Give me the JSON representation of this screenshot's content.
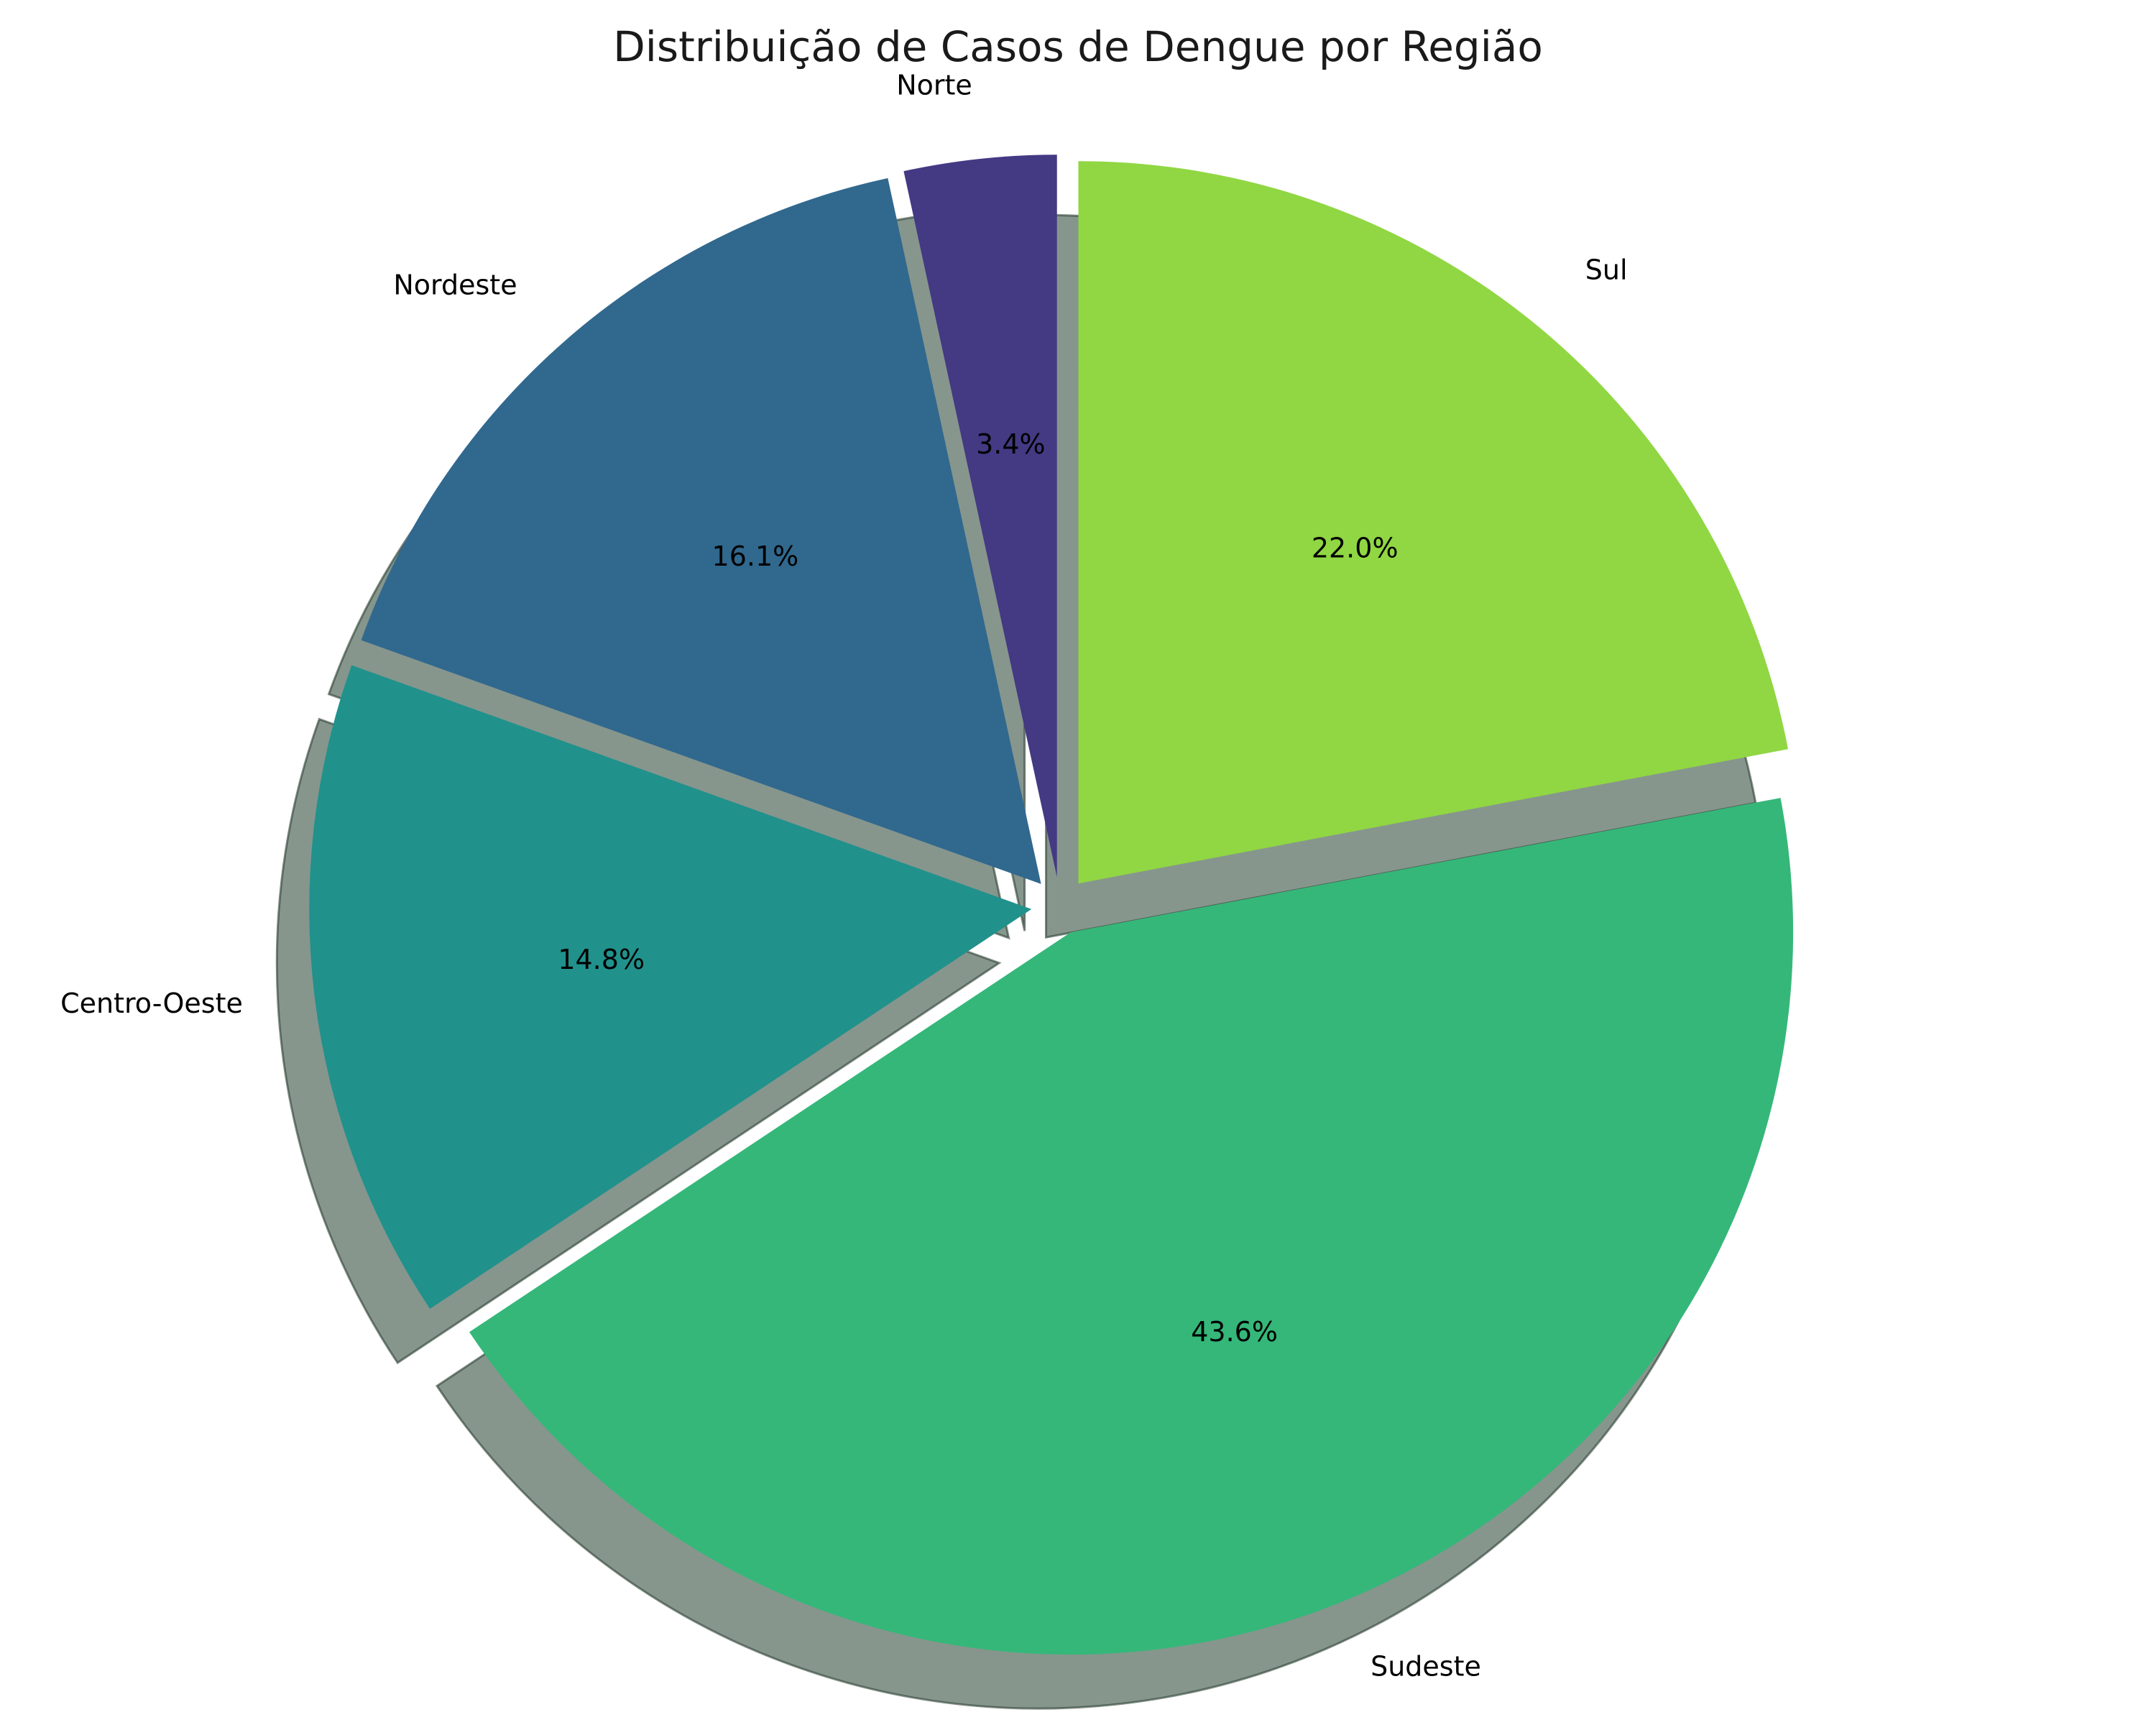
{
  "chart_data": {
    "type": "pie",
    "title": "Distribuição de Casos de Dengue por Região",
    "categories": [
      "Norte",
      "Nordeste",
      "Centro-Oeste",
      "Sudeste",
      "Sul"
    ],
    "values": [
      3.4,
      16.1,
      14.8,
      43.6,
      22.0
    ],
    "value_labels": [
      "3.4%",
      "16.1%",
      "14.8%",
      "43.6%",
      "22.0%"
    ],
    "colors": [
      "#443983",
      "#31688e",
      "#21918c",
      "#35b779",
      "#90d743"
    ],
    "start_angle_deg": 90,
    "direction": "counterclockwise",
    "exploded": true,
    "shadow": true,
    "legend": "none"
  }
}
